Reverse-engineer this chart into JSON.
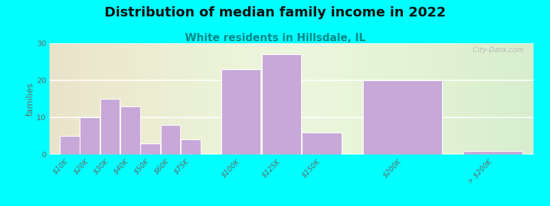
{
  "title": "Distribution of median family income in 2022",
  "subtitle": "White residents in Hillsdale, IL",
  "ylabel": "families",
  "background_outer": "#00FFFF",
  "bar_color": "#c8a8d8",
  "bar_edge_color": "#ffffff",
  "title_fontsize": 14,
  "subtitle_fontsize": 11,
  "subtitle_color": "#008888",
  "categories": [
    "$10K",
    "$20K",
    "$30K",
    "$40K",
    "$50K",
    "$60K",
    "$75K",
    "$100K",
    "$125K",
    "$150K",
    "$200K",
    "> $200K"
  ],
  "values": [
    5,
    10,
    15,
    13,
    3,
    8,
    4,
    23,
    27,
    6,
    20,
    1
  ],
  "positions": [
    0,
    1,
    2,
    3,
    4,
    5,
    6,
    8,
    10,
    12,
    15,
    20
  ],
  "widths": [
    1,
    1,
    1,
    1,
    1,
    1,
    1,
    2,
    2,
    2,
    4,
    3
  ],
  "ylim": [
    0,
    30
  ],
  "yticks": [
    0,
    10,
    20,
    30
  ],
  "watermark": "  City-Data.com"
}
